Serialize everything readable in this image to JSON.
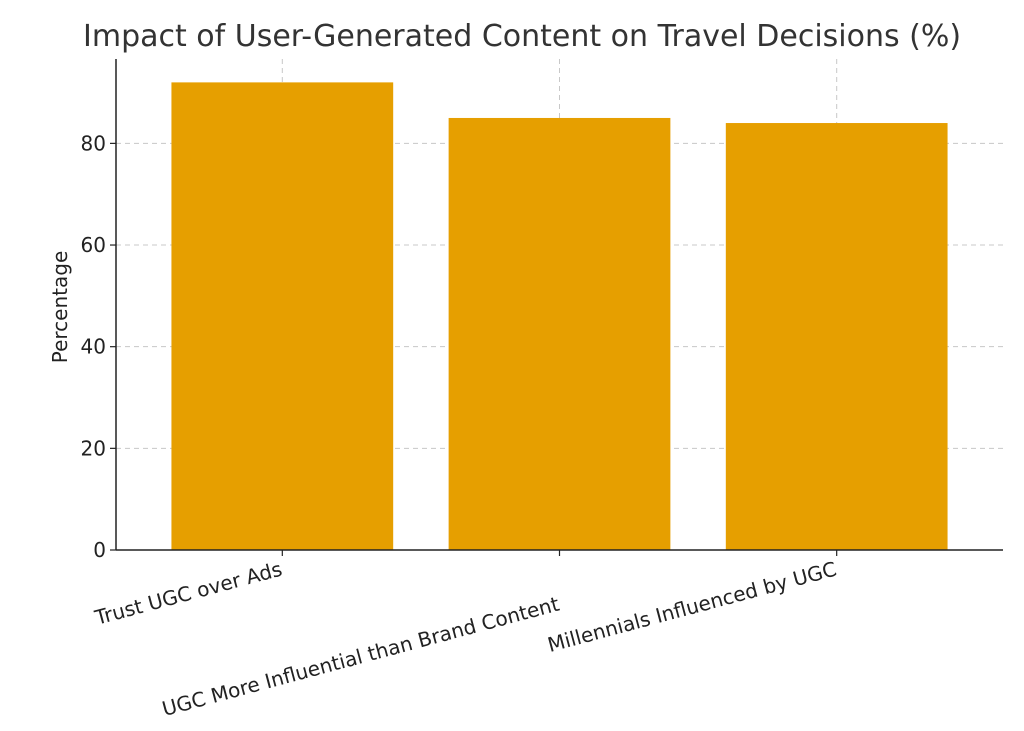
{
  "chart_data": {
    "type": "bar",
    "title": "Impact of User-Generated Content on Travel Decisions (%)",
    "xlabel": "",
    "ylabel": "Percentage",
    "categories": [
      "Trust UGC over Ads",
      "UGC More Influential than Brand Content",
      "Millennials Influenced by UGC"
    ],
    "values": [
      92,
      85,
      84
    ],
    "ylim": [
      0,
      96.6
    ],
    "yticks": [
      0,
      20,
      40,
      60,
      80
    ],
    "grid": true,
    "bar_color": "#E69F00"
  }
}
